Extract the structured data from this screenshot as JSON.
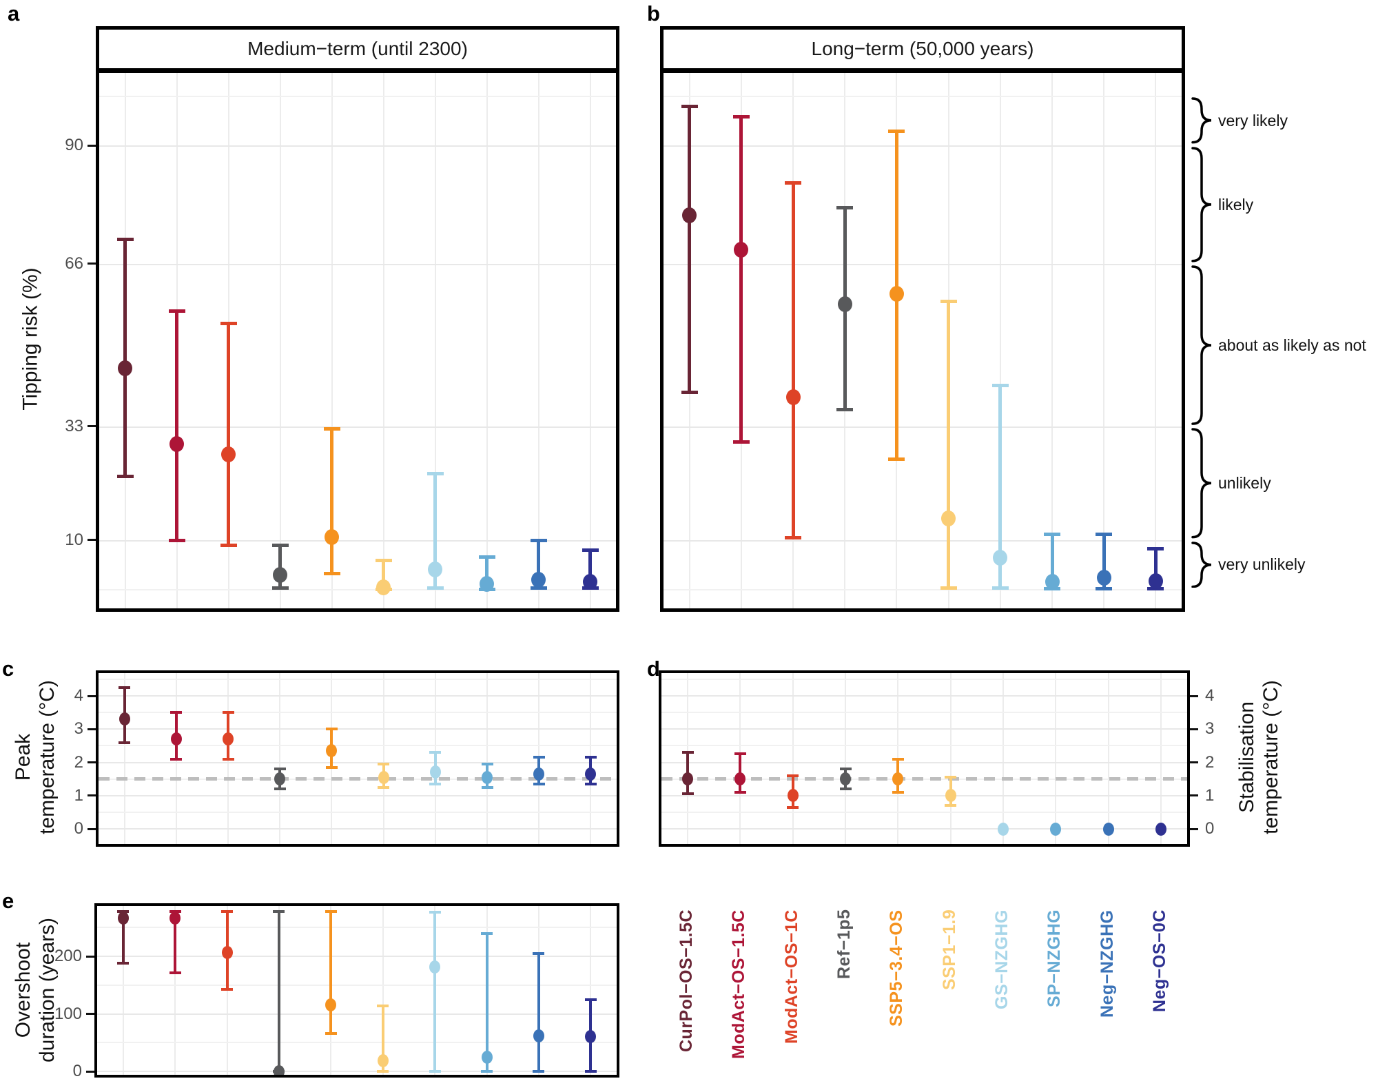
{
  "figure": {
    "panel_letters": {
      "a": "a",
      "b": "b",
      "c": "c",
      "d": "d",
      "e": "e"
    },
    "background_color": "#FFFFFF",
    "gridline_color": "#E8E8E8",
    "tick_label_color": "#4D4D4D",
    "reference_line_color": "#BDBDBD",
    "border_color": "#000000"
  },
  "scenarios": [
    {
      "label": "CurPol−OS−1.5C",
      "color": "#692535"
    },
    {
      "label": "ModAct−OS−1.5C",
      "color": "#AD1537"
    },
    {
      "label": "ModAct−OS−1C",
      "color": "#DE4327"
    },
    {
      "label": "Ref−1p5",
      "color": "#58595B"
    },
    {
      "label": "SSP5−3.4−OS",
      "color": "#F5921E"
    },
    {
      "label": "SSP1−1.9",
      "color": "#FACD74"
    },
    {
      "label": "GS−NZGHG",
      "color": "#A7D6E9"
    },
    {
      "label": "SP−NZGHG",
      "color": "#66ABD4"
    },
    {
      "label": "Neg−NZGHG",
      "color": "#3A72B7"
    },
    {
      "label": "Neg−OS−0C",
      "color": "#2E3191"
    }
  ],
  "likelihood_bands": [
    {
      "label": "very likely",
      "from": 90,
      "to": 100
    },
    {
      "label": "likely",
      "from": 66,
      "to": 90
    },
    {
      "label": "about as likely as not",
      "from": 33,
      "to": 66
    },
    {
      "label": "unlikely",
      "from": 10,
      "to": 33
    },
    {
      "label": "very unlikely",
      "from": 0,
      "to": 10
    }
  ],
  "chart_data": [
    {
      "id": "a",
      "type": "scatter",
      "title": "Medium−term (until 2300)",
      "ylabel": "Tipping risk (%)",
      "ylim": [
        -4,
        105
      ],
      "yticks": [
        {
          "value": 90,
          "label": "90"
        },
        {
          "value": 66,
          "label": "66"
        },
        {
          "value": 33,
          "label": "33"
        },
        {
          "value": 10,
          "label": "10"
        }
      ],
      "gridlines_major": [
        10,
        33,
        66,
        90
      ],
      "gridlines_minor": [
        0,
        100
      ],
      "categories": [
        "CurPol−OS−1.5C",
        "ModAct−OS−1.5C",
        "ModAct−OS−1C",
        "Ref−1p5",
        "SSP5−3.4−OS",
        "SSP1−1.9",
        "GS−NZGHG",
        "SP−NZGHG",
        "Neg−NZGHG",
        "Neg−OS−0C"
      ],
      "series": [
        {
          "scenario": "CurPol−OS−1.5C",
          "center": 45,
          "lo": 23,
          "hi": 71
        },
        {
          "scenario": "ModAct−OS−1.5C",
          "center": 29.5,
          "lo": 10,
          "hi": 56.5
        },
        {
          "scenario": "ModAct−OS−1C",
          "center": 27.5,
          "lo": 9,
          "hi": 54
        },
        {
          "scenario": "Ref−1p5",
          "center": 3,
          "lo": 0.3,
          "hi": 9
        },
        {
          "scenario": "SSP5−3.4−OS",
          "center": 10.7,
          "lo": 3.3,
          "hi": 32.7
        },
        {
          "scenario": "SSP1−1.9",
          "center": 0.5,
          "lo": 0.1,
          "hi": 5.9
        },
        {
          "scenario": "GS−NZGHG",
          "center": 4.2,
          "lo": 0.3,
          "hi": 23.5
        },
        {
          "scenario": "SP−NZGHG",
          "center": 1.2,
          "lo": 0.1,
          "hi": 6.6
        },
        {
          "scenario": "Neg−NZGHG",
          "center": 2,
          "lo": 0.3,
          "hi": 10
        },
        {
          "scenario": "Neg−OS−0C",
          "center": 1.6,
          "lo": 0.3,
          "hi": 8
        }
      ]
    },
    {
      "id": "b",
      "type": "scatter",
      "title": "Long−term (50,000 years)",
      "ylabel": "Tipping risk (%)",
      "ylim": [
        -4,
        105
      ],
      "yticks": [],
      "gridlines_major": [
        10,
        33,
        66,
        90
      ],
      "gridlines_minor": [
        0,
        100
      ],
      "categories": [
        "CurPol−OS−1.5C",
        "ModAct−OS−1.5C",
        "ModAct−OS−1C",
        "Ref−1p5",
        "SSP5−3.4−OS",
        "SSP1−1.9",
        "GS−NZGHG",
        "SP−NZGHG",
        "Neg−NZGHG",
        "Neg−OS−0C"
      ],
      "series": [
        {
          "scenario": "CurPol−OS−1.5C",
          "center": 76,
          "lo": 40,
          "hi": 98
        },
        {
          "scenario": "ModAct−OS−1.5C",
          "center": 69,
          "lo": 30,
          "hi": 96
        },
        {
          "scenario": "ModAct−OS−1C",
          "center": 39,
          "lo": 10.5,
          "hi": 82.5
        },
        {
          "scenario": "Ref−1p5",
          "center": 58,
          "lo": 36.5,
          "hi": 77.5
        },
        {
          "scenario": "SSP5−3.4−OS",
          "center": 60,
          "lo": 26.5,
          "hi": 93
        },
        {
          "scenario": "SSP1−1.9",
          "center": 14.5,
          "lo": 0.4,
          "hi": 58.5
        },
        {
          "scenario": "GS−NZGHG",
          "center": 6.5,
          "lo": 0.3,
          "hi": 41.5
        },
        {
          "scenario": "SP−NZGHG",
          "center": 1.6,
          "lo": 0.2,
          "hi": 11.3
        },
        {
          "scenario": "Neg−NZGHG",
          "center": 2.4,
          "lo": 0.2,
          "hi": 11.3
        },
        {
          "scenario": "Neg−OS−0C",
          "center": 1.8,
          "lo": 0.2,
          "hi": 8.3
        }
      ]
    },
    {
      "id": "c",
      "type": "scatter",
      "ylabel_lines": [
        "Peak",
        "temperature (°C)"
      ],
      "ylim": [
        -0.45,
        4.7
      ],
      "reference_line": 1.5,
      "yticks": [
        {
          "value": 4,
          "label": "4"
        },
        {
          "value": 3,
          "label": "3"
        },
        {
          "value": 2,
          "label": "2"
        },
        {
          "value": 1,
          "label": "1"
        },
        {
          "value": 0,
          "label": "0"
        }
      ],
      "gridlines_major": [
        0,
        1,
        2,
        3,
        4
      ],
      "gridlines_minor": [
        0.5,
        1.5,
        2.5,
        3.5,
        4.5
      ],
      "categories": [
        "CurPol−OS−1.5C",
        "ModAct−OS−1.5C",
        "ModAct−OS−1C",
        "Ref−1p5",
        "SSP5−3.4−OS",
        "SSP1−1.9",
        "GS−NZGHG",
        "SP−NZGHG",
        "Neg−NZGHG",
        "Neg−OS−0C"
      ],
      "series": [
        {
          "scenario": "CurPol−OS−1.5C",
          "center": 3.3,
          "lo": 2.6,
          "hi": 4.25
        },
        {
          "scenario": "ModAct−OS−1.5C",
          "center": 2.7,
          "lo": 2.1,
          "hi": 3.5
        },
        {
          "scenario": "ModAct−OS−1C",
          "center": 2.7,
          "lo": 2.1,
          "hi": 3.5
        },
        {
          "scenario": "Ref−1p5",
          "center": 1.5,
          "lo": 1.2,
          "hi": 1.8
        },
        {
          "scenario": "SSP5−3.4−OS",
          "center": 2.35,
          "lo": 1.85,
          "hi": 3.0
        },
        {
          "scenario": "SSP1−1.9",
          "center": 1.55,
          "lo": 1.25,
          "hi": 1.95
        },
        {
          "scenario": "GS−NZGHG",
          "center": 1.7,
          "lo": 1.35,
          "hi": 2.3
        },
        {
          "scenario": "SP−NZGHG",
          "center": 1.55,
          "lo": 1.25,
          "hi": 1.95
        },
        {
          "scenario": "Neg−NZGHG",
          "center": 1.65,
          "lo": 1.35,
          "hi": 2.15
        },
        {
          "scenario": "Neg−OS−0C",
          "center": 1.65,
          "lo": 1.35,
          "hi": 2.15
        }
      ]
    },
    {
      "id": "d",
      "type": "scatter",
      "ylabel_lines": [
        "Stabilisation",
        "temperature (°C)"
      ],
      "axis_side": "right",
      "ylim": [
        -0.45,
        4.7
      ],
      "reference_line": 1.5,
      "yticks": [
        {
          "value": 4,
          "label": "4"
        },
        {
          "value": 3,
          "label": "3"
        },
        {
          "value": 2,
          "label": "2"
        },
        {
          "value": 1,
          "label": "1"
        },
        {
          "value": 0,
          "label": "0"
        }
      ],
      "gridlines_major": [
        0,
        1,
        2,
        3,
        4
      ],
      "gridlines_minor": [
        0.5,
        1.5,
        2.5,
        3.5,
        4.5
      ],
      "categories": [
        "CurPol−OS−1.5C",
        "ModAct−OS−1.5C",
        "ModAct−OS−1C",
        "Ref−1p5",
        "SSP5−3.4−OS",
        "SSP1−1.9",
        "GS−NZGHG",
        "SP−NZGHG",
        "Neg−NZGHG",
        "Neg−OS−0C"
      ],
      "series": [
        {
          "scenario": "CurPol−OS−1.5C",
          "center": 1.5,
          "lo": 1.05,
          "hi": 2.3
        },
        {
          "scenario": "ModAct−OS−1.5C",
          "center": 1.5,
          "lo": 1.1,
          "hi": 2.25
        },
        {
          "scenario": "ModAct−OS−1C",
          "center": 1.0,
          "lo": 0.65,
          "hi": 1.6
        },
        {
          "scenario": "Ref−1p5",
          "center": 1.5,
          "lo": 1.2,
          "hi": 1.8
        },
        {
          "scenario": "SSP5−3.4−OS",
          "center": 1.5,
          "lo": 1.1,
          "hi": 2.1
        },
        {
          "scenario": "SSP1−1.9",
          "center": 1.0,
          "lo": 0.7,
          "hi": 1.55
        },
        {
          "scenario": "GS−NZGHG",
          "center": 0,
          "lo": null,
          "hi": null
        },
        {
          "scenario": "SP−NZGHG",
          "center": 0,
          "lo": null,
          "hi": null
        },
        {
          "scenario": "Neg−NZGHG",
          "center": 0,
          "lo": null,
          "hi": null
        },
        {
          "scenario": "Neg−OS−0C",
          "center": 0,
          "lo": null,
          "hi": null
        }
      ]
    },
    {
      "id": "e",
      "type": "scatter",
      "ylabel_lines": [
        "Overshoot",
        "duration (years)"
      ],
      "ylim": [
        -6,
        285
      ],
      "yticks": [
        {
          "value": 200,
          "label": "200"
        },
        {
          "value": 100,
          "label": "100"
        },
        {
          "value": 0,
          "label": "0"
        }
      ],
      "gridlines_major": [
        0,
        100,
        200
      ],
      "gridlines_minor": [
        50,
        150,
        250
      ],
      "categories": [
        "CurPol−OS−1.5C",
        "ModAct−OS−1.5C",
        "ModAct−OS−1C",
        "Ref−1p5",
        "SSP5−3.4−OS",
        "SSP1−1.9",
        "GS−NZGHG",
        "SP−NZGHG",
        "Neg−NZGHG",
        "Neg−OS−0C"
      ],
      "series": [
        {
          "scenario": "CurPol−OS−1.5C",
          "center": 266,
          "lo": 188,
          "hi": 278
        },
        {
          "scenario": "ModAct−OS−1.5C",
          "center": 266,
          "lo": 171,
          "hi": 278
        },
        {
          "scenario": "ModAct−OS−1C",
          "center": 206,
          "lo": 143,
          "hi": 278
        },
        {
          "scenario": "Ref−1p5",
          "center": 0,
          "lo": 0,
          "hi": 278
        },
        {
          "scenario": "SSP5−3.4−OS",
          "center": 115,
          "lo": 66,
          "hi": 278
        },
        {
          "scenario": "SSP1−1.9",
          "center": 18,
          "lo": 0,
          "hi": 114
        },
        {
          "scenario": "GS−NZGHG",
          "center": 182,
          "lo": 0,
          "hi": 277
        },
        {
          "scenario": "SP−NZGHG",
          "center": 25,
          "lo": 0,
          "hi": 240
        },
        {
          "scenario": "Neg−NZGHG",
          "center": 62,
          "lo": 0,
          "hi": 205
        },
        {
          "scenario": "Neg−OS−0C",
          "center": 61,
          "lo": 0,
          "hi": 125
        }
      ]
    }
  ]
}
